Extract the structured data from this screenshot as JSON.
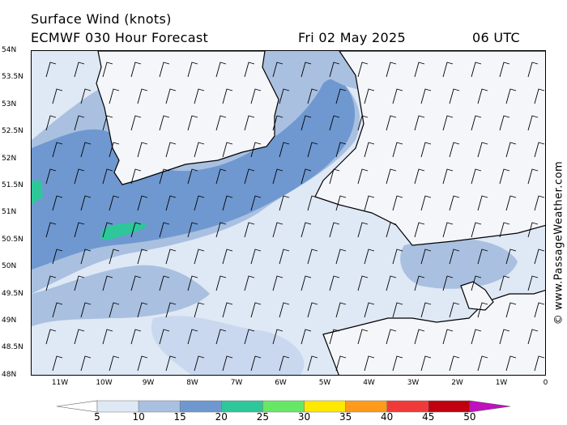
{
  "header": {
    "title": "Surface Wind (knots)",
    "model": "ECMWF 030 Hour Forecast",
    "valid_date": "Fri 02 May 2025",
    "valid_time": "06 UTC"
  },
  "credit": "© www.PassageWeather.com",
  "axes": {
    "lat_labels": [
      "54N",
      "53.5N",
      "53N",
      "52.5N",
      "52N",
      "51.5N",
      "51N",
      "50.5N",
      "50N",
      "49.5N",
      "49N",
      "48.5N",
      "48N"
    ],
    "lon_labels": [
      "11W",
      "10W",
      "9W",
      "8W",
      "7W",
      "6W",
      "5W",
      "4W",
      "3W",
      "2W",
      "1W",
      "0"
    ]
  },
  "legend": {
    "ticks": [
      "5",
      "10",
      "15",
      "20",
      "25",
      "30",
      "35",
      "40",
      "45",
      "50"
    ],
    "colors": [
      "#ffffff",
      "#dfe8f5",
      "#a9c0e0",
      "#6f98d0",
      "#2ec79a",
      "#66e866",
      "#ffe800",
      "#ff9a1a",
      "#f03a3a",
      "#c00010",
      "#c010c0"
    ]
  },
  "map": {
    "land_color": "#ffffff",
    "coast_color": "#000000",
    "barb_color": "#000000"
  }
}
